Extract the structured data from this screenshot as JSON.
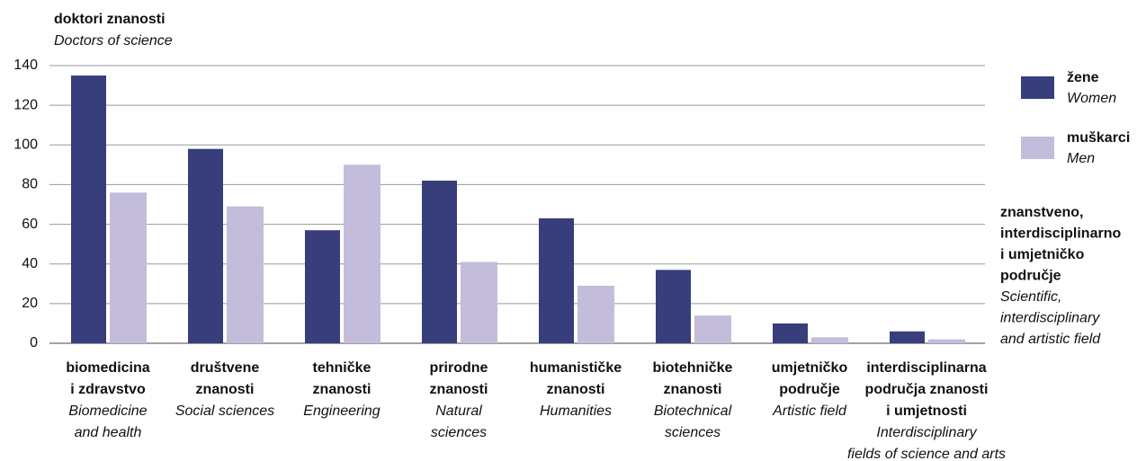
{
  "chart_data": {
    "type": "bar",
    "y_label": [
      "doktori znanosti",
      "Doctors of science"
    ],
    "x_label": {
      "hr": [
        "znanstveno,",
        "interdisciplinarno",
        "i umjetničko",
        "područje"
      ],
      "en": [
        "Scientific,",
        "interdisciplinary",
        "and artistic field"
      ]
    },
    "categories": [
      {
        "hr": [
          "biomedicina",
          "i zdravstvo"
        ],
        "en": [
          "Biomedicine",
          "and health"
        ]
      },
      {
        "hr": [
          "društvene",
          "znanosti"
        ],
        "en": [
          "Social sciences"
        ]
      },
      {
        "hr": [
          "tehničke",
          "znanosti"
        ],
        "en": [
          "Engineering"
        ]
      },
      {
        "hr": [
          "prirodne",
          "znanosti"
        ],
        "en": [
          "Natural",
          "sciences"
        ]
      },
      {
        "hr": [
          "humanističke",
          "znanosti"
        ],
        "en": [
          "Humanities"
        ]
      },
      {
        "hr": [
          "biotehničke",
          "znanosti"
        ],
        "en": [
          "Biotechnical",
          "sciences"
        ]
      },
      {
        "hr": [
          "umjetničko",
          "područje"
        ],
        "en": [
          "Artistic field"
        ]
      },
      {
        "hr": [
          "interdisciplinarna",
          "područja znanosti",
          "i umjetnosti"
        ],
        "en": [
          "Interdisciplinary",
          "fields of science and arts"
        ]
      }
    ],
    "series": [
      {
        "name": "žene",
        "name_en": "Women",
        "color": "#383d7c",
        "values": [
          135,
          98,
          57,
          82,
          63,
          37,
          10,
          6
        ]
      },
      {
        "name": "muškarci",
        "name_en": "Men",
        "color": "#c3bcdb",
        "values": [
          76,
          69,
          90,
          41,
          29,
          14,
          3,
          2
        ]
      }
    ],
    "ylim": [
      0,
      140
    ],
    "yticks": [
      0,
      20,
      40,
      60,
      80,
      100,
      120,
      140
    ],
    "grid": true,
    "legend": "right"
  }
}
